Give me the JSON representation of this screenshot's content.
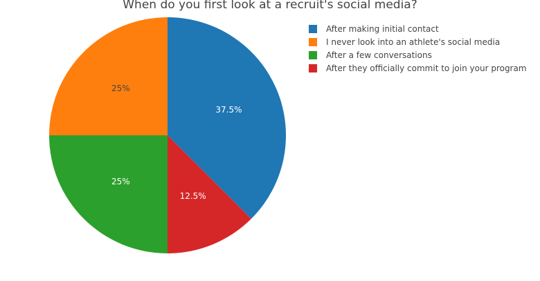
{
  "chart_data": {
    "type": "pie",
    "title": "When do you first look at a recruit's social media?",
    "legend_position": "top-right",
    "slices": [
      {
        "label": "After making initial contact",
        "value": 37.5,
        "display": "37.5%",
        "color": "#1f77b4",
        "text_color": "#ffffff"
      },
      {
        "label": "After they officially commit to join your program",
        "value": 12.5,
        "display": "12.5%",
        "color": "#d62728",
        "text_color": "#ffffff"
      },
      {
        "label": "After a few conversations",
        "value": 25,
        "display": "25%",
        "color": "#2ca02c",
        "text_color": "#ffffff"
      },
      {
        "label": "I never look into an athlete's social media",
        "value": 25,
        "display": "25%",
        "color": "#ff7f0e",
        "text_color": "#444444"
      }
    ],
    "legend_order": [
      "After making initial contact",
      "I never look into an athlete's social media",
      "After a few conversations",
      "After they officially commit to join your program"
    ]
  }
}
